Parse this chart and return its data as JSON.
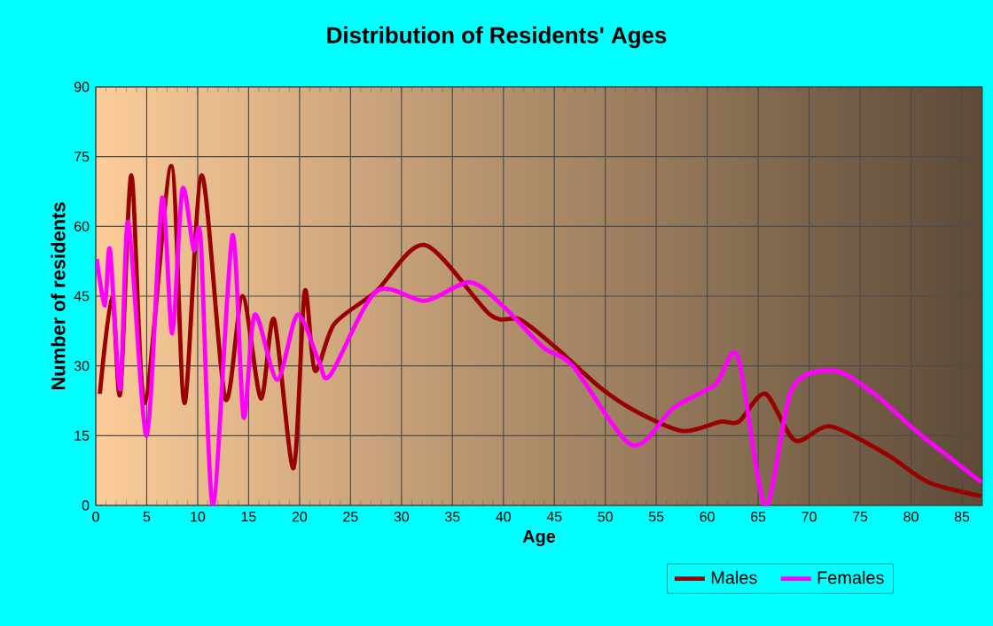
{
  "chart_data": {
    "type": "line",
    "title": "Distribution of Residents' Ages",
    "xlabel": "Age",
    "ylabel": "Number of residents",
    "xlim": [
      0,
      87
    ],
    "ylim": [
      0,
      90
    ],
    "xticks": [
      0,
      5,
      10,
      15,
      20,
      25,
      30,
      35,
      40,
      45,
      50,
      55,
      60,
      65,
      70,
      75,
      80,
      85
    ],
    "yticks": [
      0,
      15,
      30,
      45,
      60,
      75,
      90
    ],
    "grid": true,
    "legend": "bottom",
    "marker": "none",
    "line_style": "solid",
    "series": [
      {
        "name": "Males",
        "color": "#990000",
        "x": [
          0.4,
          1.6,
          2.4,
          3.5,
          4.8,
          7.4,
          8.7,
          10.4,
          12.7,
          14.4,
          16.2,
          17.5,
          19.4,
          20.5,
          21.5,
          23.4,
          27.5,
          32.3,
          38.7,
          41.6,
          45.1,
          49.7,
          53.2,
          57.6,
          61.3,
          63.1,
          65.7,
          68.6,
          72.1,
          77.6,
          81.7,
          86.9
        ],
        "values": [
          24,
          45,
          24,
          71,
          22,
          73,
          22,
          71,
          23,
          45,
          23,
          40,
          8,
          46,
          29,
          39,
          46,
          56,
          41,
          40,
          34,
          25,
          20,
          16,
          18,
          18,
          24,
          14,
          17,
          11,
          5,
          2
        ]
      },
      {
        "name": "Females",
        "color": "#ff00ff",
        "x": [
          0.1,
          0.9,
          1.4,
          2.4,
          3.2,
          5.0,
          6.5,
          7.5,
          8.5,
          9.6,
          10.3,
          11.5,
          13.4,
          14.5,
          15.6,
          17.8,
          19.8,
          21.9,
          23.0,
          27.5,
          32.3,
          36.7,
          39.9,
          43.9,
          46.8,
          52.6,
          56.7,
          60.8,
          63.0,
          65.7,
          68.3,
          72.4,
          76.4,
          80.5,
          86.9
        ],
        "values": [
          53,
          43,
          55,
          25,
          61,
          15,
          66,
          37,
          68,
          55,
          57,
          0,
          58,
          19,
          41,
          27,
          41,
          31,
          28,
          46,
          44,
          48,
          43,
          34,
          30,
          13,
          21,
          26,
          32,
          0,
          25,
          29,
          24,
          16,
          5
        ]
      }
    ]
  }
}
